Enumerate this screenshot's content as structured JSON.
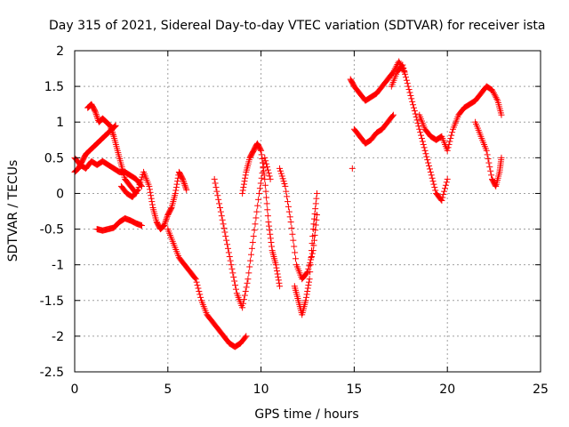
{
  "chart_data": {
    "type": "scatter",
    "title": "Day 315 of 2021, Sidereal Day-to-day VTEC variation (SDTVAR) for receiver ista",
    "xlabel": "GPS time / hours",
    "ylabel": "SDTVAR / TECUs",
    "xlim": [
      0,
      25
    ],
    "ylim": [
      -2.5,
      2
    ],
    "xticks": [
      0,
      5,
      10,
      15,
      20,
      25
    ],
    "yticks": [
      -2.5,
      -2,
      -1.5,
      -1,
      -0.5,
      0,
      0.5,
      1,
      1.5,
      2
    ],
    "xtick_labels": [
      "0",
      "5",
      "10",
      "15",
      "20",
      "25"
    ],
    "ytick_labels": [
      "-2.5",
      "-2",
      "-1.5",
      "-1",
      "-0.5",
      "0",
      "0.5",
      "1",
      "1.5",
      "2"
    ],
    "grid": true,
    "marker": "plus",
    "marker_color": "#ff0000",
    "series": [
      {
        "segments": [
          {
            "x": [
              0.0,
              0.3,
              0.6,
              0.9,
              1.2,
              1.5,
              1.8,
              2.1,
              2.4,
              2.7,
              3.0,
              3.3,
              3.6
            ],
            "y": [
              0.5,
              0.4,
              0.35,
              0.45,
              0.4,
              0.45,
              0.4,
              0.35,
              0.3,
              0.3,
              0.25,
              0.2,
              0.1
            ]
          },
          {
            "x": [
              0.0,
              0.2,
              0.4,
              0.6,
              0.8,
              1.0,
              1.2,
              1.4,
              1.6,
              1.8,
              2.0,
              2.2
            ],
            "y": [
              0.3,
              0.35,
              0.45,
              0.55,
              0.6,
              0.65,
              0.7,
              0.75,
              0.8,
              0.85,
              0.9,
              0.95
            ]
          },
          {
            "x": [
              0.7,
              0.9,
              1.1,
              1.3,
              1.5,
              1.7,
              1.9,
              2.1,
              2.3,
              2.5,
              2.7,
              3.0,
              3.3
            ],
            "y": [
              1.2,
              1.25,
              1.15,
              1.0,
              1.05,
              1.0,
              0.95,
              0.8,
              0.6,
              0.4,
              0.2,
              0.1,
              0.0
            ]
          },
          {
            "x": [
              1.2,
              1.5,
              1.8,
              2.1,
              2.4,
              2.7,
              3.0,
              3.3,
              3.6
            ],
            "y": [
              -0.5,
              -0.52,
              -0.5,
              -0.48,
              -0.4,
              -0.35,
              -0.38,
              -0.42,
              -0.45
            ]
          },
          {
            "x": [
              2.5,
              2.8,
              3.1,
              3.4,
              3.7,
              4.0,
              4.2,
              4.4,
              4.6,
              4.8,
              5.0,
              5.2,
              5.4,
              5.6,
              5.8,
              6.0
            ],
            "y": [
              0.1,
              0.0,
              -0.05,
              0.05,
              0.3,
              0.1,
              -0.2,
              -0.4,
              -0.5,
              -0.45,
              -0.3,
              -0.2,
              0.0,
              0.3,
              0.2,
              0.05
            ]
          },
          {
            "x": [
              5.0,
              5.3,
              5.6,
              5.9,
              6.2,
              6.5,
              6.8,
              7.1,
              7.4,
              7.7,
              8.0,
              8.3,
              8.6,
              8.9,
              9.2
            ],
            "y": [
              -0.5,
              -0.7,
              -0.9,
              -1.0,
              -1.1,
              -1.2,
              -1.5,
              -1.7,
              -1.8,
              -1.9,
              -2.0,
              -2.1,
              -2.15,
              -2.1,
              -2.0
            ]
          },
          {
            "x": [
              7.5,
              7.8,
              8.1,
              8.4,
              8.7,
              9.0,
              9.3,
              9.6,
              9.9,
              10.2,
              10.5
            ],
            "y": [
              0.2,
              -0.2,
              -0.6,
              -1.0,
              -1.4,
              -1.6,
              -1.2,
              -0.6,
              0.0,
              0.5,
              0.2
            ]
          },
          {
            "x": [
              9.0,
              9.2,
              9.4,
              9.6,
              9.8,
              10.0,
              10.2,
              10.4,
              10.6,
              10.8,
              11.0
            ],
            "y": [
              0.0,
              0.3,
              0.5,
              0.6,
              0.7,
              0.6,
              0.2,
              -0.4,
              -0.8,
              -1.0,
              -1.3
            ]
          },
          {
            "x": [
              11.0,
              11.3,
              11.6,
              11.9,
              12.2,
              12.5,
              12.8,
              13.0
            ],
            "y": [
              0.35,
              0.1,
              -0.4,
              -1.0,
              -1.2,
              -1.1,
              -0.8,
              -0.3
            ]
          },
          {
            "x": [
              11.8,
              12.0,
              12.2,
              12.4,
              12.6,
              12.8,
              13.0
            ],
            "y": [
              -1.3,
              -1.5,
              -1.7,
              -1.5,
              -1.2,
              -0.5,
              0.0
            ]
          },
          {
            "x": [
              14.8,
              15.0,
              15.3,
              15.6,
              15.9,
              16.2,
              16.5,
              16.8,
              17.1,
              17.4,
              17.7
            ],
            "y": [
              1.6,
              1.5,
              1.4,
              1.3,
              1.35,
              1.4,
              1.5,
              1.6,
              1.7,
              1.85,
              1.7
            ]
          },
          {
            "x": [
              15.0,
              15.3,
              15.6,
              15.9,
              16.2,
              16.5,
              16.8,
              17.1
            ],
            "y": [
              0.9,
              0.8,
              0.7,
              0.75,
              0.85,
              0.9,
              1.0,
              1.1
            ]
          },
          {
            "x": [
              17.0,
              17.3,
              17.6,
              17.9,
              18.2,
              18.5,
              18.8,
              19.1,
              19.4,
              19.7,
              20.0
            ],
            "y": [
              1.5,
              1.7,
              1.8,
              1.5,
              1.2,
              0.9,
              0.6,
              0.3,
              0.0,
              -0.1,
              0.2
            ]
          },
          {
            "x": [
              18.5,
              18.8,
              19.1,
              19.4,
              19.7,
              20.0,
              20.3,
              20.6,
              20.9,
              21.2,
              21.5,
              21.8,
              22.1,
              22.4,
              22.7,
              22.9
            ],
            "y": [
              1.1,
              0.9,
              0.8,
              0.75,
              0.8,
              0.6,
              0.9,
              1.1,
              1.2,
              1.25,
              1.3,
              1.4,
              1.5,
              1.45,
              1.3,
              1.1
            ]
          },
          {
            "x": [
              14.9
            ],
            "y": [
              0.35
            ]
          },
          {
            "x": [
              21.5,
              21.8,
              22.1,
              22.4,
              22.6,
              22.8,
              22.9
            ],
            "y": [
              1.0,
              0.8,
              0.6,
              0.2,
              0.1,
              0.3,
              0.5
            ]
          }
        ]
      }
    ]
  }
}
